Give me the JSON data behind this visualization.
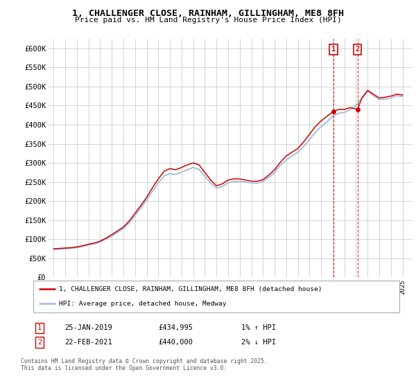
{
  "title": "1, CHALLENGER CLOSE, RAINHAM, GILLINGHAM, ME8 8FH",
  "subtitle": "Price paid vs. HM Land Registry's House Price Index (HPI)",
  "ylabel_ticks": [
    "£0",
    "£50K",
    "£100K",
    "£150K",
    "£200K",
    "£250K",
    "£300K",
    "£350K",
    "£400K",
    "£450K",
    "£500K",
    "£550K",
    "£600K"
  ],
  "ytick_values": [
    0,
    50000,
    100000,
    150000,
    200000,
    250000,
    300000,
    350000,
    400000,
    450000,
    500000,
    550000,
    600000
  ],
  "ylim": [
    0,
    625000
  ],
  "xlim_start": 1994.5,
  "xlim_end": 2025.8,
  "background_color": "#ffffff",
  "grid_color": "#cccccc",
  "house_line_color": "#cc0000",
  "hpi_line_color": "#a0bcd8",
  "purchase_marker_color": "#cc0000",
  "purchase_box_color": "#cc0000",
  "purchase1_x": 2019.07,
  "purchase1_y": 434995,
  "purchase1_label": "1",
  "purchase1_date": "25-JAN-2019",
  "purchase1_price": "£434,995",
  "purchase1_hpi": "1% ↑ HPI",
  "purchase2_x": 2021.13,
  "purchase2_y": 440000,
  "purchase2_label": "2",
  "purchase2_date": "22-FEB-2021",
  "purchase2_price": "£440,000",
  "purchase2_hpi": "2% ↓ HPI",
  "legend_line1": "1, CHALLENGER CLOSE, RAINHAM, GILLINGHAM, ME8 8FH (detached house)",
  "legend_line2": "HPI: Average price, detached house, Medway",
  "footer": "Contains HM Land Registry data © Crown copyright and database right 2025.\nThis data is licensed under the Open Government Licence v3.0.",
  "house_prices_x": [
    1995.0,
    1995.5,
    1996.0,
    1996.5,
    1997.0,
    1997.5,
    1998.0,
    1998.5,
    1999.0,
    1999.5,
    2000.0,
    2000.5,
    2001.0,
    2001.5,
    2002.0,
    2002.5,
    2003.0,
    2003.5,
    2004.0,
    2004.5,
    2005.0,
    2005.5,
    2006.0,
    2006.5,
    2007.0,
    2007.5,
    2008.0,
    2008.5,
    2009.0,
    2009.5,
    2010.0,
    2010.5,
    2011.0,
    2011.5,
    2012.0,
    2012.5,
    2013.0,
    2013.5,
    2014.0,
    2014.5,
    2015.0,
    2015.5,
    2016.0,
    2016.5,
    2017.0,
    2017.5,
    2018.0,
    2018.5,
    2019.07,
    2019.5,
    2020.0,
    2020.5,
    2021.13,
    2021.5,
    2022.0,
    2022.5,
    2023.0,
    2023.5,
    2024.0,
    2024.5,
    2025.0
  ],
  "house_prices_y": [
    75000,
    76000,
    77000,
    78000,
    80000,
    83000,
    87000,
    90000,
    95000,
    103000,
    112000,
    122000,
    132000,
    148000,
    168000,
    188000,
    210000,
    235000,
    258000,
    278000,
    285000,
    282000,
    288000,
    295000,
    300000,
    295000,
    275000,
    255000,
    240000,
    245000,
    255000,
    258000,
    258000,
    255000,
    252000,
    252000,
    256000,
    268000,
    282000,
    302000,
    318000,
    328000,
    338000,
    355000,
    375000,
    395000,
    410000,
    422000,
    434995,
    440000,
    440000,
    445000,
    440000,
    470000,
    490000,
    480000,
    470000,
    472000,
    475000,
    480000,
    478000
  ],
  "hpi_x": [
    1995.0,
    1995.5,
    1996.0,
    1996.5,
    1997.0,
    1997.5,
    1998.0,
    1998.5,
    1999.0,
    1999.5,
    2000.0,
    2000.5,
    2001.0,
    2001.5,
    2002.0,
    2002.5,
    2003.0,
    2003.5,
    2004.0,
    2004.5,
    2005.0,
    2005.5,
    2006.0,
    2006.5,
    2007.0,
    2007.5,
    2008.0,
    2008.5,
    2009.0,
    2009.5,
    2010.0,
    2010.5,
    2011.0,
    2011.5,
    2012.0,
    2012.5,
    2013.0,
    2013.5,
    2014.0,
    2014.5,
    2015.0,
    2015.5,
    2016.0,
    2016.5,
    2017.0,
    2017.5,
    2018.0,
    2018.5,
    2019.0,
    2019.5,
    2020.0,
    2020.5,
    2021.0,
    2021.5,
    2022.0,
    2022.5,
    2023.0,
    2023.5,
    2024.0,
    2024.5,
    2025.0
  ],
  "hpi_y": [
    73000,
    74000,
    75000,
    76000,
    78000,
    81000,
    85000,
    88000,
    93000,
    100000,
    108000,
    118000,
    128000,
    143000,
    162000,
    182000,
    203000,
    226000,
    248000,
    266000,
    272000,
    270000,
    276000,
    282000,
    288000,
    283000,
    265000,
    247000,
    234000,
    238000,
    248000,
    251000,
    252000,
    250000,
    247000,
    247000,
    251000,
    262000,
    275000,
    294000,
    308000,
    318000,
    328000,
    343000,
    361000,
    380000,
    395000,
    408000,
    422000,
    430000,
    432000,
    440000,
    450000,
    468000,
    488000,
    476000,
    466000,
    467000,
    470000,
    476000,
    474000
  ]
}
